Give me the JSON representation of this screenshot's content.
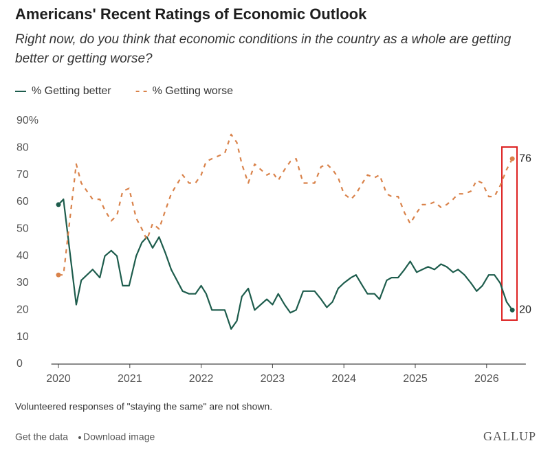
{
  "chart_data": {
    "type": "line",
    "title": "Americans' Recent Ratings of Economic Outlook",
    "subtitle": "Right now, do you think that economic conditions in the country as a whole are getting better or getting worse?",
    "x": [
      2020.0,
      2020.07,
      2020.25,
      2020.32,
      2020.48,
      2020.58,
      2020.65,
      2020.74,
      2020.82,
      2020.9,
      2020.99,
      2021.09,
      2021.17,
      2021.24,
      2021.32,
      2021.41,
      2021.5,
      2021.58,
      2021.74,
      2021.83,
      2021.92,
      2022.0,
      2022.07,
      2022.15,
      2022.24,
      2022.33,
      2022.42,
      2022.5,
      2022.57,
      2022.66,
      2022.75,
      2022.92,
      2023.0,
      2023.08,
      2023.17,
      2023.25,
      2023.33,
      2023.43,
      2023.59,
      2023.68,
      2023.76,
      2023.84,
      2023.92,
      2024.0,
      2024.1,
      2024.17,
      2024.26,
      2024.33,
      2024.43,
      2024.5,
      2024.6,
      2024.67,
      2024.76,
      2024.85,
      2024.93,
      2025.02,
      2025.1,
      2025.18,
      2025.27,
      2025.36,
      2025.44,
      2025.53,
      2025.6,
      2025.69,
      2025.78,
      2025.86,
      2025.94,
      2026.03,
      2026.11,
      2026.19,
      2026.28,
      2026.36
    ],
    "series": [
      {
        "name": "% Getting better",
        "color": "#1d5c4c",
        "style": "solid",
        "values": [
          59,
          61,
          22,
          31,
          35,
          32,
          40,
          42,
          40,
          29,
          29,
          40,
          45,
          47,
          43,
          47,
          41,
          35,
          27,
          26,
          26,
          29,
          26,
          20,
          20,
          20,
          13,
          16,
          25,
          28,
          20,
          24,
          22,
          26,
          22,
          19,
          20,
          27,
          27,
          24,
          21,
          23,
          28,
          30,
          32,
          33,
          29,
          26,
          26,
          24,
          31,
          32,
          32,
          35,
          38,
          34,
          35,
          36,
          35,
          37,
          36,
          34,
          35,
          33,
          30,
          27,
          29,
          33,
          33,
          30,
          23,
          20
        ]
      },
      {
        "name": "% Getting worse",
        "color": "#d9824a",
        "style": "dashed",
        "values": [
          33,
          33,
          74,
          67,
          61,
          61,
          57,
          53,
          55,
          64,
          65,
          54,
          50,
          46,
          52,
          50,
          57,
          63,
          70,
          67,
          67,
          70,
          75,
          76,
          77,
          78,
          85,
          82,
          74,
          67,
          74,
          70,
          71,
          68,
          72,
          75,
          76,
          67,
          67,
          73,
          74,
          72,
          69,
          63,
          61,
          63,
          67,
          70,
          69,
          70,
          63,
          62,
          62,
          56,
          52,
          56,
          59,
          59,
          60,
          58,
          59,
          61,
          63,
          63,
          64,
          68,
          67,
          62,
          62,
          66,
          72,
          76
        ]
      }
    ],
    "xlim": [
      2019.9,
      2026.55
    ],
    "xticks": [
      2020,
      2021,
      2022,
      2023,
      2024,
      2025,
      2026
    ],
    "ylim": [
      0,
      90
    ],
    "yticks": [
      0,
      10,
      20,
      30,
      40,
      50,
      60,
      70,
      80,
      {
        "value": 90,
        "label": "90%"
      }
    ],
    "grid": false,
    "note": "Volunteered responses of \"staying the same\" are not shown.",
    "links": [
      "Get the data",
      "Download image"
    ],
    "brand": "GALLUP"
  }
}
